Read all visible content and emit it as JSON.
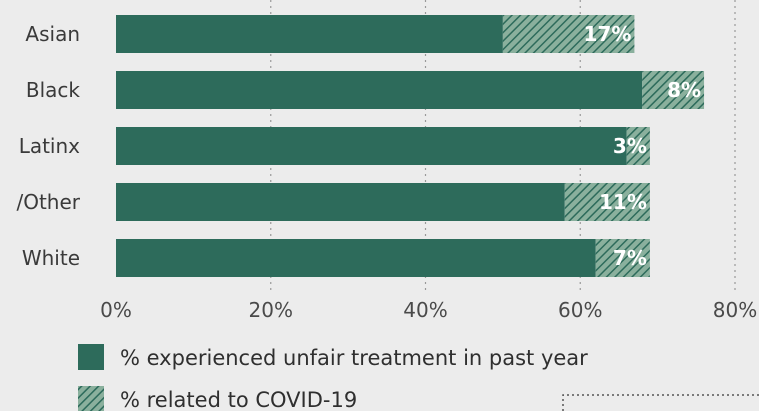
{
  "colors": {
    "solid": "#2d6b5b",
    "hatch_bg": "#8ab09d",
    "hatch_line": "#2d6b5b",
    "grid": "#999999",
    "background": "#ececec"
  },
  "chart_data": {
    "type": "bar",
    "orientation": "horizontal",
    "stacked": true,
    "categories": [
      "Asian",
      "Black",
      "Latinx",
      "/Other",
      "White"
    ],
    "series": [
      {
        "name": "% experienced unfair treatment in past year",
        "values": [
          50,
          68,
          66,
          58,
          62
        ],
        "style": "solid"
      },
      {
        "name": "% related to COVID-19",
        "values": [
          17,
          8,
          3,
          11,
          7
        ],
        "style": "hatched"
      }
    ],
    "data_labels": [
      "17%",
      "8%",
      "3%",
      "11%",
      "7%"
    ],
    "xlim": [
      0,
      80
    ],
    "xticks": [
      0,
      20,
      40,
      60,
      80
    ],
    "xtick_labels": [
      "0%",
      "20%",
      "40%",
      "60%",
      "80%"
    ],
    "grid": "vertical dotted",
    "legend_position": "bottom-left"
  },
  "legend": {
    "items": [
      {
        "label": "% experienced unfair treatment in past year",
        "style": "solid"
      },
      {
        "label": "% related to COVID-19",
        "style": "hatched"
      }
    ]
  }
}
